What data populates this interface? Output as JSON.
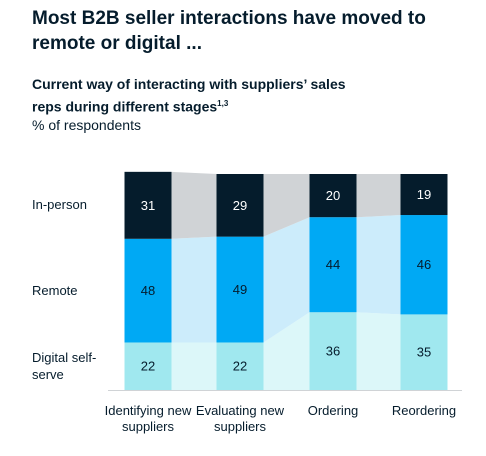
{
  "chart_data": {
    "type": "stacked-bar",
    "title": "Most B2B seller interactions have moved to remote or digital ...",
    "subtitle": "Current way of interacting with suppliers’ sales reps during different stages",
    "subtitle_footnote": "1,3",
    "unit": "% of respondents",
    "categories": [
      "Identifying new suppliers",
      "Evaluating new suppliers",
      "Ordering",
      "Reordering"
    ],
    "series": [
      {
        "name": "Digital self-serve",
        "color": "#a0e8ef",
        "band_color": "#dcf7f9",
        "label_color": "#051c2c",
        "values": [
          22,
          22,
          36,
          35
        ]
      },
      {
        "name": "Remote",
        "color": "#00a9f4",
        "band_color": "#ccecfb",
        "label_color": "#051c2c",
        "values": [
          48,
          49,
          44,
          46
        ]
      },
      {
        "name": "In-person",
        "color": "#051c2c",
        "band_color": "#d0d3d6",
        "label_color": "#ffffff",
        "values": [
          31,
          29,
          20,
          19
        ]
      }
    ]
  }
}
